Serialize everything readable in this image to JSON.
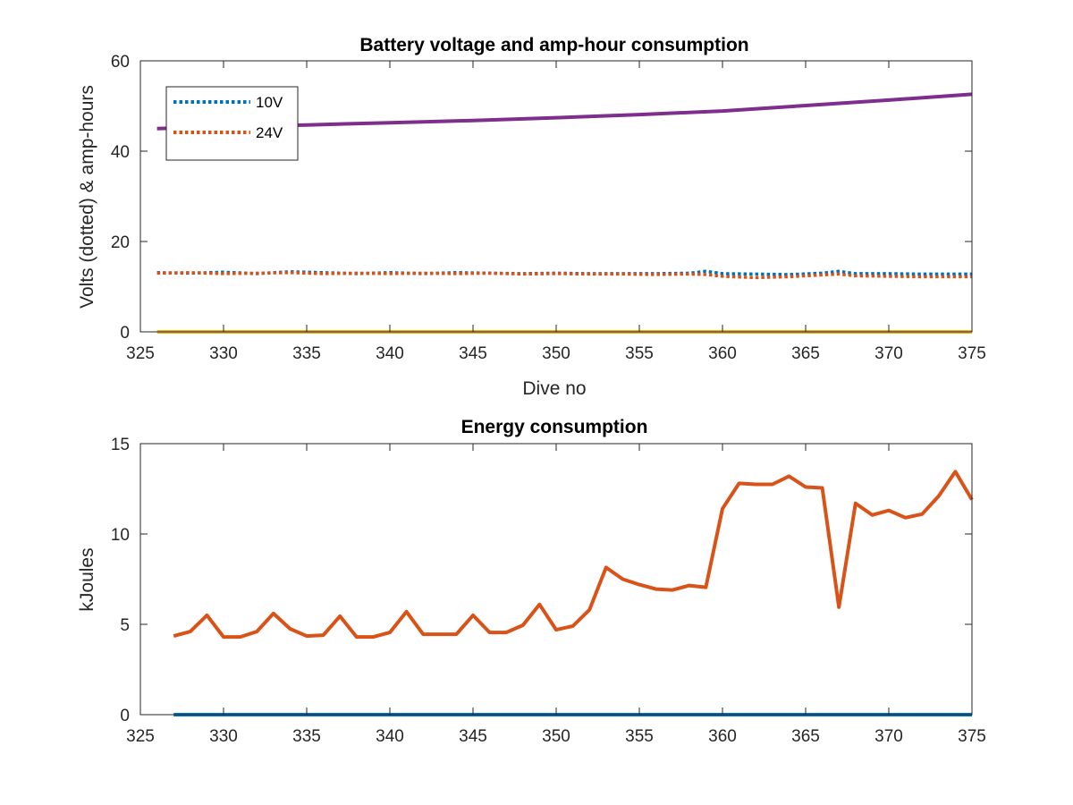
{
  "colors": {
    "blue": "#0072BD",
    "orange": "#D95319",
    "yellow": "#EDB120",
    "purple": "#7E2F8E",
    "axis": "#262626"
  },
  "chart_data": [
    {
      "type": "line",
      "title": "Battery voltage and amp-hour consumption",
      "xlabel": "Dive no",
      "ylabel": "Volts (dotted) & amp-hours",
      "xlim": [
        325,
        375
      ],
      "ylim": [
        0,
        60
      ],
      "xticks": [
        325,
        330,
        335,
        340,
        345,
        350,
        355,
        360,
        365,
        370,
        375
      ],
      "yticks": [
        0,
        20,
        40,
        60
      ],
      "grid": false,
      "legend_position": "top-left",
      "series": [
        {
          "name": "10V",
          "style": "dotted",
          "color": "#0072BD",
          "x": [
            326,
            328,
            330,
            332,
            334,
            336,
            338,
            340,
            342,
            344,
            346,
            348,
            350,
            352,
            354,
            356,
            358,
            359,
            360,
            362,
            364,
            366,
            367,
            368,
            370,
            372,
            375
          ],
          "y": [
            13.1,
            13.0,
            13.2,
            12.9,
            13.3,
            13.1,
            12.9,
            13.1,
            12.9,
            13.1,
            13.0,
            12.9,
            13.0,
            12.9,
            12.9,
            12.9,
            13.0,
            13.4,
            12.9,
            12.8,
            12.7,
            13.0,
            13.4,
            12.9,
            12.9,
            12.8,
            12.8
          ]
        },
        {
          "name": "24V",
          "style": "dotted",
          "color": "#D95319",
          "x": [
            326,
            328,
            330,
            332,
            334,
            336,
            338,
            340,
            342,
            344,
            346,
            348,
            350,
            352,
            354,
            356,
            358,
            359,
            360,
            362,
            364,
            366,
            367,
            368,
            370,
            372,
            375
          ],
          "y": [
            13.0,
            13.1,
            12.9,
            13.0,
            13.1,
            12.9,
            13.0,
            12.9,
            13.0,
            12.9,
            13.0,
            12.8,
            12.9,
            12.8,
            12.8,
            12.7,
            12.8,
            12.7,
            12.3,
            12.0,
            12.2,
            12.6,
            12.8,
            12.4,
            12.3,
            12.2,
            12.2
          ]
        },
        {
          "name": "",
          "style": "solid",
          "color": "#7E2F8E",
          "x": [
            326,
            330,
            335,
            340,
            345,
            350,
            355,
            360,
            365,
            370,
            375
          ],
          "y": [
            45.0,
            45.4,
            45.8,
            46.3,
            46.8,
            47.4,
            48.1,
            48.9,
            50.1,
            51.3,
            52.6
          ]
        },
        {
          "name": "",
          "style": "solid",
          "color": "#EDB120",
          "x": [
            326,
            375
          ],
          "y": [
            0,
            0
          ]
        }
      ]
    },
    {
      "type": "line",
      "title": "Energy consumption",
      "xlabel": "",
      "ylabel": "kJoules",
      "xlim": [
        325,
        375
      ],
      "ylim": [
        0,
        15
      ],
      "xticks": [
        325,
        330,
        335,
        340,
        345,
        350,
        355,
        360,
        365,
        370,
        375
      ],
      "yticks": [
        0,
        5,
        10,
        15
      ],
      "grid": false,
      "series": [
        {
          "name": "",
          "style": "solid",
          "color": "#D95319",
          "x": [
            327,
            328,
            329,
            330,
            331,
            332,
            333,
            334,
            335,
            336,
            337,
            338,
            339,
            340,
            341,
            342,
            343,
            344,
            345,
            346,
            347,
            348,
            349,
            350,
            351,
            352,
            353,
            354,
            355,
            356,
            357,
            358,
            359,
            360,
            361,
            362,
            363,
            364,
            365,
            366,
            367,
            368,
            369,
            370,
            371,
            372,
            373,
            374,
            375
          ],
          "y": [
            4.35,
            4.6,
            5.5,
            4.3,
            4.3,
            4.6,
            5.6,
            4.75,
            4.35,
            4.4,
            5.45,
            4.3,
            4.3,
            4.55,
            5.7,
            4.45,
            4.45,
            4.45,
            5.5,
            4.55,
            4.55,
            4.95,
            6.1,
            4.7,
            4.9,
            5.8,
            8.15,
            7.5,
            7.2,
            6.95,
            6.9,
            7.15,
            7.05,
            11.4,
            12.8,
            12.75,
            12.75,
            13.2,
            12.6,
            12.55,
            5.95,
            11.7,
            11.05,
            11.3,
            10.9,
            11.1,
            12.1,
            13.45,
            11.9
          ]
        },
        {
          "name": "",
          "style": "solid",
          "color": "#0072BD",
          "x": [
            327,
            375
          ],
          "y": [
            0,
            0
          ]
        }
      ]
    }
  ]
}
